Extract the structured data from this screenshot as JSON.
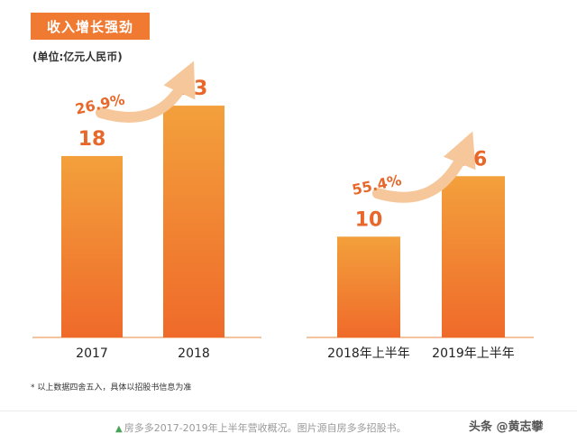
{
  "header": {
    "title": "收入增长强劲",
    "unit": "(单位:亿元人民币)"
  },
  "colors": {
    "accent": "#f07a32",
    "bar_top": "#f3a03c",
    "bar_bottom": "#ef6a2a",
    "value_text": "#e8672a",
    "growth_arrow": "#f5c79a",
    "growth_text": "#e8672a",
    "axis_line": "#f2b07f"
  },
  "chart_data": [
    {
      "type": "bar",
      "categories": [
        "2017",
        "2018"
      ],
      "values": [
        18,
        23
      ],
      "value_labels": [
        "18",
        "23"
      ],
      "growth_label": "26.9%",
      "ylim": [
        0,
        30
      ]
    },
    {
      "type": "bar",
      "categories": [
        "2018年上半年",
        "2019年上半年"
      ],
      "values": [
        10,
        16
      ],
      "value_labels": [
        "10",
        "16"
      ],
      "growth_label": "55.4%",
      "ylim": [
        0,
        30
      ]
    }
  ],
  "footnote": "* 以上数据四舍五入，具体以招股书信息为准",
  "caption": {
    "icon": "triangle-up-icon",
    "text": "房多多2017-2019年上半年营收概况。图片源自房多多招股书。"
  },
  "watermark": "头条 @黄志攀"
}
